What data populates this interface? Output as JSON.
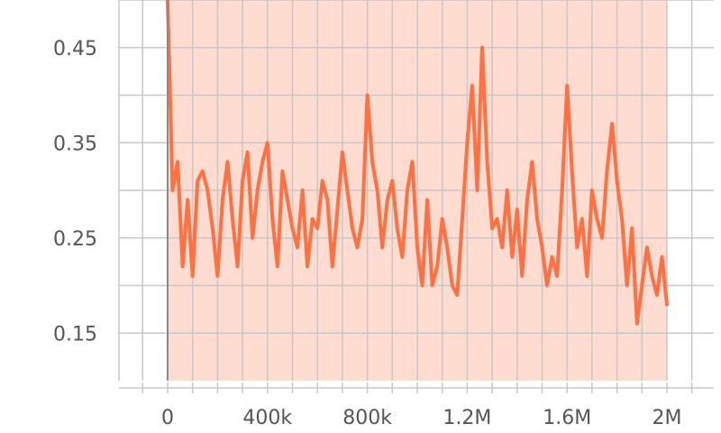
{
  "colors": {
    "line": "#ff7043",
    "band": "#ffd5c8",
    "grid": "#c8c8c8",
    "axis": "#9e9e9e",
    "text": "#555555",
    "background": "#ffffff"
  },
  "chart_data": {
    "type": "line",
    "title": "",
    "xlabel": "",
    "ylabel": "",
    "xlim": [
      0,
      2000000
    ],
    "ylim": [
      0.1,
      0.5
    ],
    "x_ticks": [
      0,
      400000,
      800000,
      1200000,
      1600000,
      2000000
    ],
    "x_tick_labels": [
      "0",
      "400k",
      "800k",
      "1.2M",
      "1.6M",
      "2M"
    ],
    "y_ticks": [
      0.15,
      0.25,
      0.35,
      0.45
    ],
    "y_tick_labels": [
      "0.15",
      "0.25",
      "0.35",
      "0.45"
    ],
    "grid": true,
    "smoothed_band": true,
    "series": [
      {
        "x": [
          0,
          20000,
          40000,
          60000,
          80000,
          100000,
          120000,
          140000,
          160000,
          180000,
          200000,
          220000,
          240000,
          260000,
          280000,
          300000,
          320000,
          340000,
          360000,
          380000,
          400000,
          420000,
          440000,
          460000,
          480000,
          500000,
          520000,
          540000,
          560000,
          580000,
          600000,
          620000,
          640000,
          660000,
          680000,
          700000,
          720000,
          740000,
          760000,
          780000,
          800000,
          820000,
          840000,
          860000,
          880000,
          900000,
          920000,
          940000,
          960000,
          980000,
          1000000,
          1020000,
          1040000,
          1060000,
          1080000,
          1100000,
          1120000,
          1140000,
          1160000,
          1180000,
          1200000,
          1220000,
          1240000,
          1260000,
          1280000,
          1300000,
          1320000,
          1340000,
          1360000,
          1380000,
          1400000,
          1420000,
          1440000,
          1460000,
          1480000,
          1500000,
          1520000,
          1540000,
          1560000,
          1580000,
          1600000,
          1620000,
          1640000,
          1660000,
          1680000,
          1700000,
          1720000,
          1740000,
          1760000,
          1780000,
          1800000,
          1820000,
          1840000,
          1860000,
          1880000,
          1900000,
          1920000,
          1940000,
          1960000,
          1980000,
          2000000
        ],
        "values": [
          0.5,
          0.3,
          0.33,
          0.22,
          0.29,
          0.21,
          0.31,
          0.32,
          0.3,
          0.26,
          0.21,
          0.29,
          0.33,
          0.27,
          0.22,
          0.31,
          0.34,
          0.25,
          0.3,
          0.33,
          0.35,
          0.27,
          0.22,
          0.32,
          0.29,
          0.26,
          0.24,
          0.3,
          0.22,
          0.27,
          0.26,
          0.31,
          0.29,
          0.22,
          0.28,
          0.34,
          0.3,
          0.26,
          0.24,
          0.27,
          0.4,
          0.33,
          0.3,
          0.24,
          0.29,
          0.31,
          0.26,
          0.23,
          0.3,
          0.33,
          0.24,
          0.2,
          0.29,
          0.2,
          0.22,
          0.27,
          0.24,
          0.2,
          0.19,
          0.27,
          0.35,
          0.41,
          0.3,
          0.45,
          0.33,
          0.26,
          0.27,
          0.24,
          0.3,
          0.23,
          0.28,
          0.21,
          0.29,
          0.33,
          0.27,
          0.24,
          0.2,
          0.23,
          0.21,
          0.3,
          0.41,
          0.32,
          0.24,
          0.27,
          0.21,
          0.3,
          0.27,
          0.25,
          0.32,
          0.37,
          0.31,
          0.27,
          0.2,
          0.26,
          0.16,
          0.2,
          0.24,
          0.21,
          0.19,
          0.23,
          0.18
        ]
      }
    ]
  }
}
